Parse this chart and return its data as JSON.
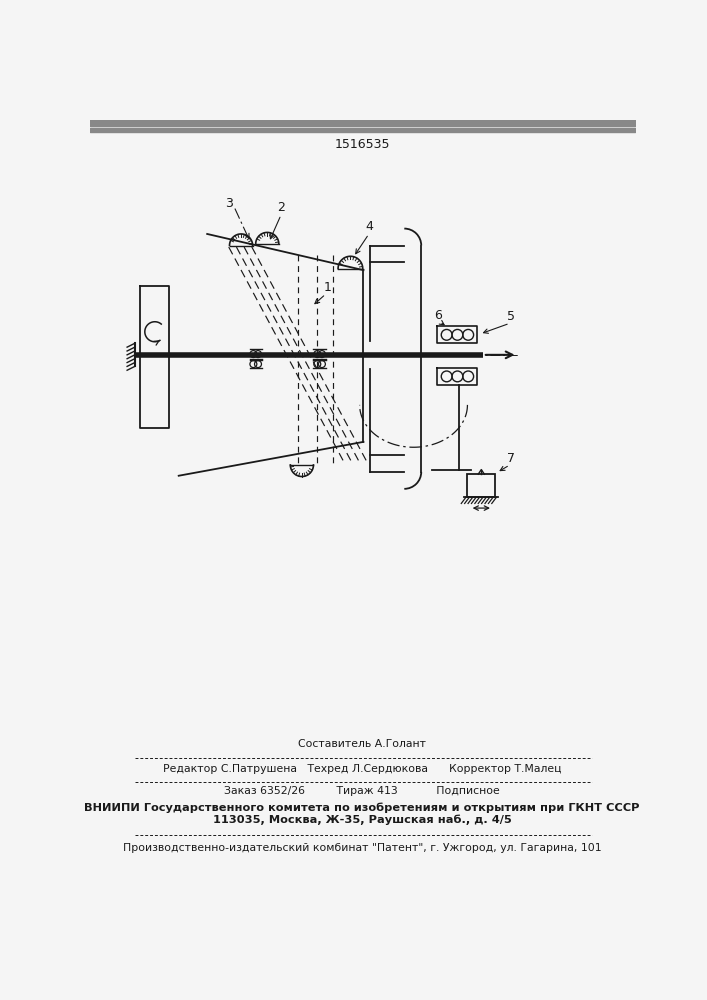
{
  "title": "1516535",
  "bg": "#f5f5f5",
  "lc": "#1a1a1a",
  "footer": {
    "line1": "Составитель А.Голант",
    "line2": "Редактор С.Патрушена   Техред Л.Сердюкова      Корректор Т.Малец",
    "line3": "Заказ 6352/26         Тираж 413           Подписное",
    "line4": "ВНИИПИ Государственного комитета по изобретениям и открытиям при ГКНТ СССР",
    "line5": "113035, Москва, Ж-35, Раушская наб., д. 4/5",
    "line6": "Производственно-издательский комбинат \"Патент\", г. Ужгород, ул. Гагарина, 101"
  }
}
